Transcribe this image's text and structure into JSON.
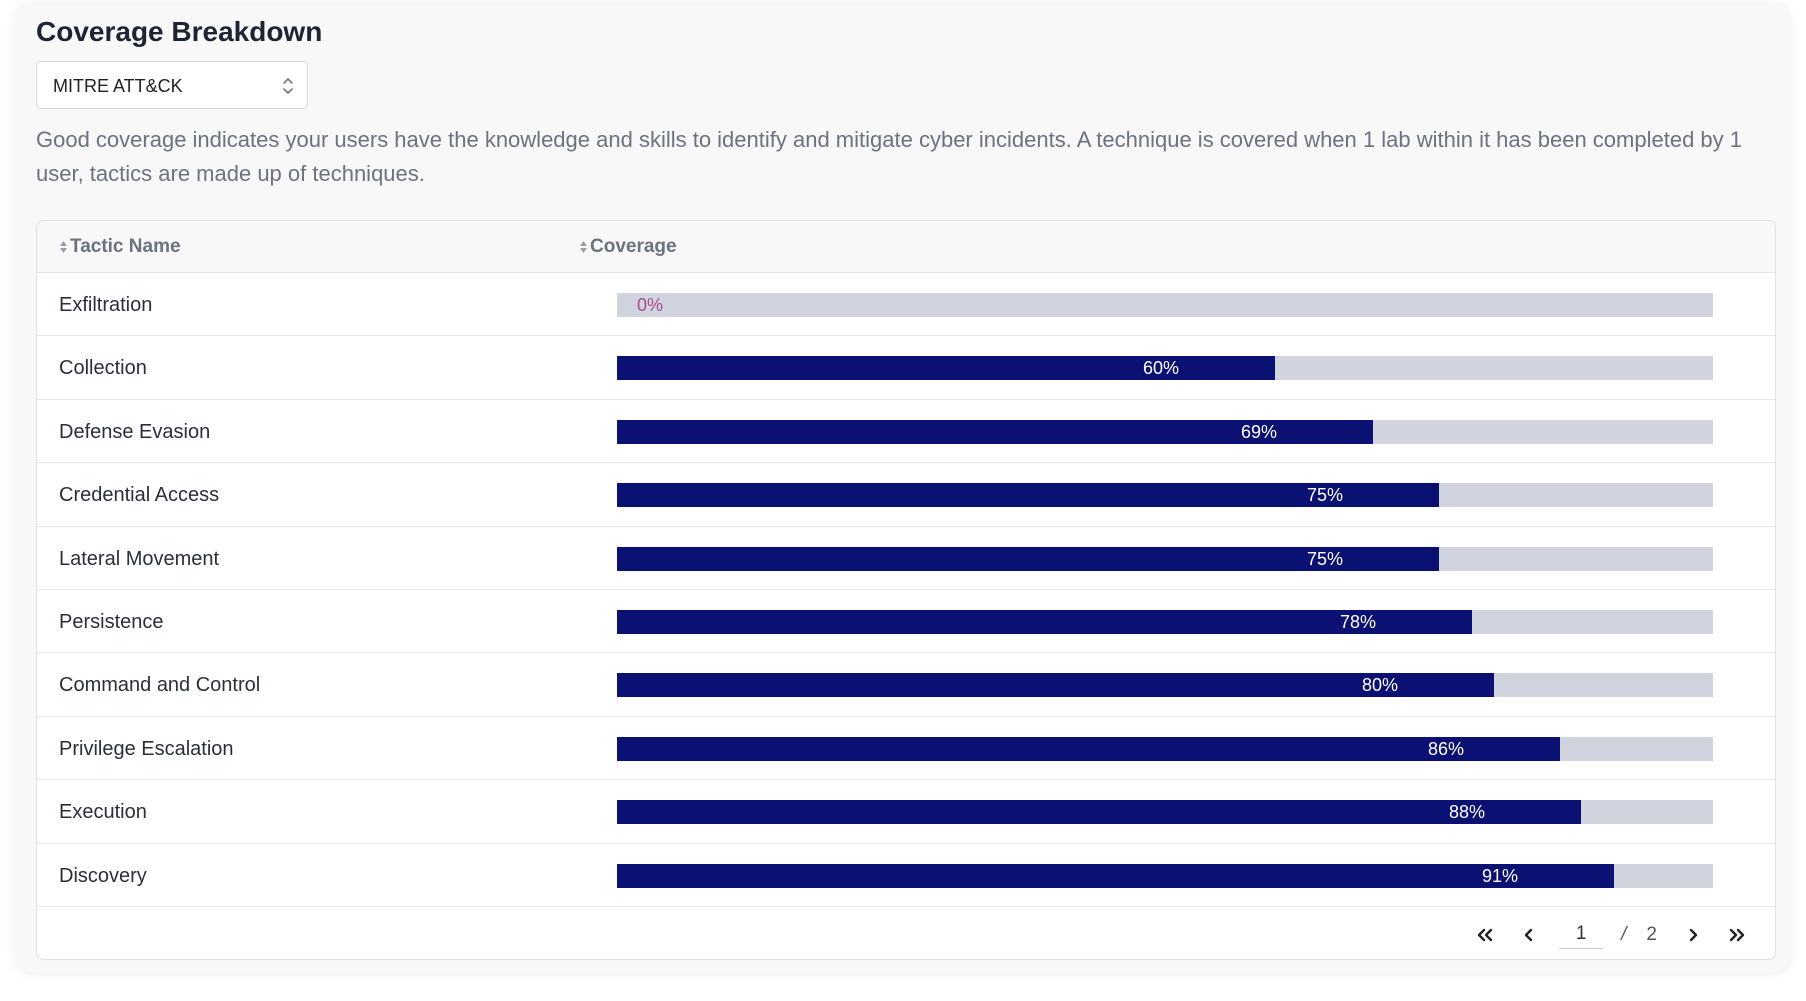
{
  "title": "Coverage Breakdown",
  "framework_select": {
    "value": "MITRE ATT&CK"
  },
  "description": "Good coverage indicates your users have the knowledge and skills to identify and mitigate cyber incidents. A technique is covered when 1 lab within it has been completed by 1 user, tactics are made up of techniques.",
  "table": {
    "columns": [
      "Tactic Name",
      "Coverage"
    ],
    "rows": [
      {
        "name": "Exfiltration",
        "coverage": 0,
        "label": "0%"
      },
      {
        "name": "Collection",
        "coverage": 60,
        "label": "60%"
      },
      {
        "name": "Defense Evasion",
        "coverage": 69,
        "label": "69%"
      },
      {
        "name": "Credential Access",
        "coverage": 75,
        "label": "75%"
      },
      {
        "name": "Lateral Movement",
        "coverage": 75,
        "label": "75%"
      },
      {
        "name": "Persistence",
        "coverage": 78,
        "label": "78%"
      },
      {
        "name": "Command and Control",
        "coverage": 80,
        "label": "80%"
      },
      {
        "name": "Privilege Escalation",
        "coverage": 86,
        "label": "86%"
      },
      {
        "name": "Execution",
        "coverage": 88,
        "label": "88%"
      },
      {
        "name": "Discovery",
        "coverage": 91,
        "label": "91%"
      }
    ]
  },
  "pagination": {
    "current_page": "1",
    "separator": "/",
    "total_pages": "2"
  },
  "colors": {
    "bar_fill": "#0a1172",
    "bar_track": "#cfd4df",
    "zero_label": "#b04a8f"
  },
  "icons": {
    "select": "chevron-up-down-icon",
    "sort": "sort-icon",
    "first": "double-chevron-left-icon",
    "prev": "chevron-left-icon",
    "next": "chevron-right-icon",
    "last": "double-chevron-right-icon"
  }
}
